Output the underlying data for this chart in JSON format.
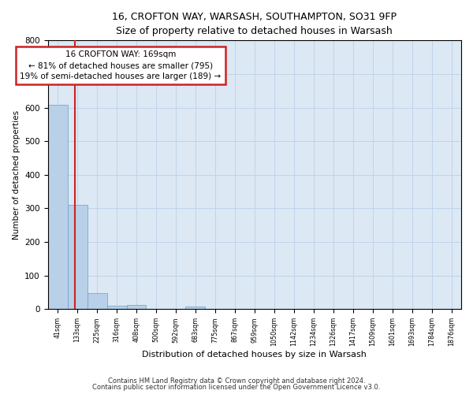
{
  "title_line1": "16, CROFTON WAY, WARSASH, SOUTHAMPTON, SO31 9FP",
  "title_line2": "Size of property relative to detached houses in Warsash",
  "xlabel": "Distribution of detached houses by size in Warsash",
  "ylabel": "Number of detached properties",
  "bar_values": [
    608,
    311,
    48,
    11,
    13,
    0,
    0,
    8,
    0,
    0,
    0,
    0,
    0,
    0,
    0,
    0,
    0,
    0,
    0,
    0
  ],
  "categories": [
    "41sqm",
    "133sqm",
    "225sqm",
    "316sqm",
    "408sqm",
    "500sqm",
    "592sqm",
    "683sqm",
    "775sqm",
    "867sqm",
    "959sqm",
    "1050sqm",
    "1142sqm",
    "1234sqm",
    "1326sqm",
    "1417sqm",
    "1509sqm",
    "1601sqm",
    "1693sqm",
    "1784sqm",
    "1876sqm"
  ],
  "bar_color": "#b8d0e8",
  "bar_edge_color": "#6a9fc8",
  "vline_color": "#cc2222",
  "annotation_text": "16 CROFTON WAY: 169sqm\n← 81% of detached houses are smaller (795)\n19% of semi-detached houses are larger (189) →",
  "annotation_box_color": "#ffffff",
  "annotation_box_edge": "#cc2222",
  "ylim": [
    0,
    800
  ],
  "yticks": [
    0,
    100,
    200,
    300,
    400,
    500,
    600,
    700,
    800
  ],
  "grid_color": "#c0d4e8",
  "bg_color": "#dce8f4",
  "footer_line1": "Contains HM Land Registry data © Crown copyright and database right 2024.",
  "footer_line2": "Contains public sector information licensed under the Open Government Licence v3.0."
}
